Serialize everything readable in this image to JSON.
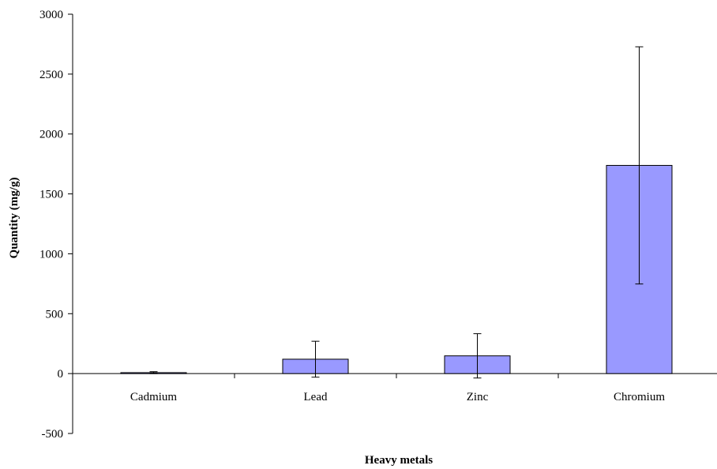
{
  "chart_data": {
    "type": "bar",
    "title": "",
    "xlabel": "Heavy metals",
    "ylabel": "Quantity (mg/g)",
    "ylim": [
      -500,
      3000
    ],
    "yticks": [
      3000,
      2500,
      2000,
      1500,
      1000,
      500,
      0,
      -500
    ],
    "categories": [
      "Cadmium",
      "Lead",
      "Zinc",
      "Chromium"
    ],
    "values": [
      8,
      120,
      148,
      1738
    ],
    "error": [
      8,
      150,
      185,
      990
    ],
    "grid": false,
    "legend": "none",
    "colors": {
      "bar_fill": "#9999ff",
      "bar_stroke": "#000000",
      "axis": "#000000"
    }
  }
}
